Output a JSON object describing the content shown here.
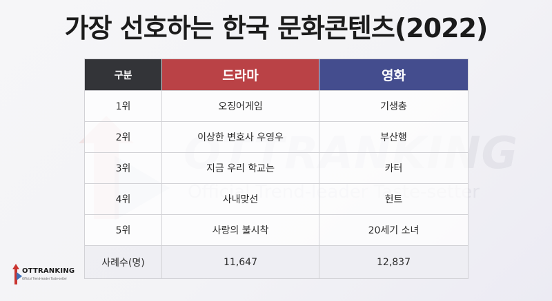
{
  "title": "가장 선호하는 한국 문화콘텐츠(2022)",
  "watermark": {
    "brand": "OTTRANKING",
    "tagline": "Official Trend-leader Taste-setter"
  },
  "logo": {
    "name": "OTTRANKING",
    "tagline": "Official Trend-leader Taste-setter"
  },
  "table": {
    "headers": {
      "category": "구분",
      "drama": "드라마",
      "movie": "영화"
    },
    "rows": [
      {
        "rank": "1위",
        "drama": "오징어게임",
        "movie": "기생충"
      },
      {
        "rank": "2위",
        "drama": "이상한 변호사 우영우",
        "movie": "부산행"
      },
      {
        "rank": "3위",
        "drama": "지금 우리 학교는",
        "movie": "카터"
      },
      {
        "rank": "4위",
        "drama": "사내맞선",
        "movie": "헌트"
      },
      {
        "rank": "5위",
        "drama": "사랑의 불시착",
        "movie": "20세기 소녀"
      }
    ],
    "total": {
      "label": "사례수(명)",
      "drama": "11,647",
      "movie": "12,837"
    }
  },
  "colors": {
    "category_header": "#333438",
    "drama_header": "#ba4246",
    "movie_header": "#444d8e",
    "logo_red": "#c9332f",
    "logo_blue": "#3e6fb6"
  }
}
